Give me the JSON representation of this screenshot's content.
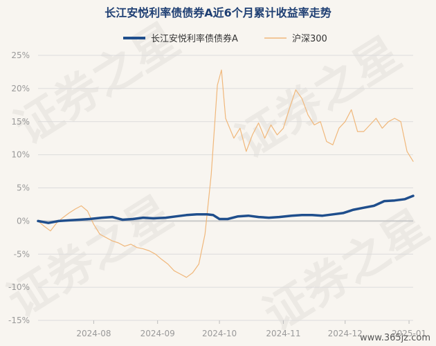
{
  "chart_data": {
    "type": "line",
    "title": "长江安悦利率债债券A近6个月累计收益率走势",
    "legend_position": "top",
    "grid": true,
    "ylim": [
      -15,
      25
    ],
    "yticks": [
      -15,
      -10,
      -5,
      0,
      5,
      10,
      15,
      20,
      25
    ],
    "ytick_labels": [
      "-15%",
      "-10%",
      "-5%",
      "0%",
      "5%",
      "10%",
      "15%",
      "20%",
      "25%"
    ],
    "xlim": [
      "2024-07-05",
      "2025-01-03"
    ],
    "xticks": [
      "2024-08-01",
      "2024-09-01",
      "2024-10-01",
      "2024-11-01",
      "2024-12-01",
      "2025-01-01"
    ],
    "xtick_labels": [
      "2024-08",
      "2024-09",
      "2024-10",
      "2024-11",
      "2024-12",
      "2025-01"
    ],
    "series": [
      {
        "name": "长江安悦利率债债券A",
        "color": "#1f4e8c",
        "x": [
          "2024-07-05",
          "2024-07-10",
          "2024-07-15",
          "2024-07-20",
          "2024-07-25",
          "2024-07-30",
          "2024-08-05",
          "2024-08-10",
          "2024-08-15",
          "2024-08-20",
          "2024-08-25",
          "2024-08-30",
          "2024-09-05",
          "2024-09-10",
          "2024-09-15",
          "2024-09-20",
          "2024-09-25",
          "2024-09-28",
          "2024-10-01",
          "2024-10-05",
          "2024-10-10",
          "2024-10-15",
          "2024-10-20",
          "2024-10-25",
          "2024-10-30",
          "2024-11-05",
          "2024-11-10",
          "2024-11-15",
          "2024-11-20",
          "2024-11-25",
          "2024-11-30",
          "2024-12-05",
          "2024-12-10",
          "2024-12-15",
          "2024-12-20",
          "2024-12-25",
          "2024-12-30",
          "2025-01-03"
        ],
        "values": [
          0.0,
          -0.3,
          0.0,
          0.1,
          0.2,
          0.3,
          0.5,
          0.6,
          0.2,
          0.3,
          0.5,
          0.4,
          0.5,
          0.7,
          0.9,
          1.0,
          1.0,
          0.9,
          0.3,
          0.3,
          0.7,
          0.8,
          0.6,
          0.5,
          0.6,
          0.8,
          0.9,
          0.9,
          0.8,
          1.0,
          1.2,
          1.7,
          2.0,
          2.3,
          3.0,
          3.1,
          3.3,
          3.8
        ]
      },
      {
        "name": "沪深300",
        "color": "#f0b77a",
        "x": [
          "2024-07-05",
          "2024-07-08",
          "2024-07-11",
          "2024-07-14",
          "2024-07-17",
          "2024-07-20",
          "2024-07-23",
          "2024-07-26",
          "2024-07-29",
          "2024-08-01",
          "2024-08-04",
          "2024-08-07",
          "2024-08-10",
          "2024-08-13",
          "2024-08-16",
          "2024-08-19",
          "2024-08-22",
          "2024-08-25",
          "2024-08-28",
          "2024-08-31",
          "2024-09-03",
          "2024-09-06",
          "2024-09-09",
          "2024-09-12",
          "2024-09-15",
          "2024-09-18",
          "2024-09-21",
          "2024-09-24",
          "2024-09-27",
          "2024-09-30",
          "2024-10-02",
          "2024-10-04",
          "2024-10-08",
          "2024-10-11",
          "2024-10-14",
          "2024-10-17",
          "2024-10-20",
          "2024-10-23",
          "2024-10-26",
          "2024-10-29",
          "2024-11-01",
          "2024-11-04",
          "2024-11-07",
          "2024-11-10",
          "2024-11-13",
          "2024-11-16",
          "2024-11-19",
          "2024-11-22",
          "2024-11-25",
          "2024-11-28",
          "2024-12-01",
          "2024-12-04",
          "2024-12-07",
          "2024-12-10",
          "2024-12-13",
          "2024-12-16",
          "2024-12-19",
          "2024-12-22",
          "2024-12-25",
          "2024-12-28",
          "2024-12-31",
          "2025-01-03"
        ],
        "values": [
          0,
          -0.8,
          -1.5,
          -0.3,
          0.5,
          1.2,
          1.8,
          2.3,
          1.5,
          -0.5,
          -2.0,
          -2.5,
          -3.0,
          -3.3,
          -3.8,
          -3.5,
          -4.0,
          -4.2,
          -4.5,
          -5.0,
          -5.8,
          -6.5,
          -7.5,
          -8.0,
          -8.5,
          -7.8,
          -6.5,
          -2.0,
          7.0,
          20.5,
          22.8,
          15.5,
          12.5,
          14.0,
          10.5,
          13.0,
          14.8,
          12.5,
          14.5,
          13.0,
          14.0,
          17.0,
          19.8,
          18.5,
          16.0,
          14.5,
          15.0,
          12.0,
          11.5,
          14.0,
          15.0,
          16.8,
          13.5,
          13.5,
          14.5,
          15.5,
          14.0,
          15.0,
          15.5,
          15.0,
          10.5,
          9.0
        ]
      }
    ]
  },
  "watermark": "证券之星",
  "site_label": "www.365jz.com"
}
